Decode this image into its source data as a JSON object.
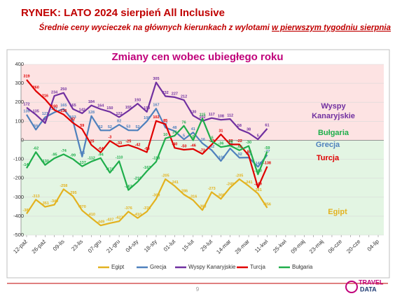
{
  "header": {
    "title": "RYNEK: LATO 2024 sierpień All Inclusive",
    "subtitle_start": "Średnie ceny wycieczek na głównych kierunkach z wylotami ",
    "subtitle_link": "w pierwszym tygodniu sierpnia"
  },
  "chart_data": {
    "type": "line",
    "title": "Zmiany cen wobec ubiegłego roku",
    "categories": [
      "12-paź",
      null,
      "26-paź",
      null,
      "09-lis",
      null,
      "23-lis",
      null,
      "07-gru",
      null,
      "21-gru",
      null,
      "04-sty",
      null,
      "18-sty",
      null,
      "01-lut",
      null,
      "15-lut",
      null,
      "29-lut",
      null,
      "14-mar",
      null,
      "28-mar",
      null,
      "11-kwi",
      null,
      "25-kwi",
      null,
      "09-maj",
      null,
      "23-maj",
      null,
      "06-cze",
      null,
      "20-cze",
      null,
      "04-lip"
    ],
    "series": [
      {
        "name": "Egipt",
        "color": "#e3b21f",
        "values": [
          -387,
          -313,
          -351,
          -340,
          -258,
          -295,
          -370,
          -410,
          -449,
          -437,
          -427,
          -376,
          -410,
          -376,
          -309,
          -205,
          -241,
          -286,
          -316,
          -368,
          -273,
          -309,
          -249,
          -205,
          -241,
          -281,
          -356,
          null,
          null,
          null,
          null,
          null,
          null,
          null,
          null,
          null,
          null,
          null,
          null
        ]
      },
      {
        "name": "Grecja",
        "color": "#4f81bd",
        "values": [
          135,
          56,
          121,
          147,
          165,
          103,
          -86,
          128,
          52,
          52,
          82,
          53,
          52,
          100,
          167,
          67,
          48,
          5,
          41,
          -16,
          -52,
          -109,
          -43,
          -92,
          -91,
          -140,
          -77,
          null,
          null,
          null,
          null,
          null,
          null,
          null,
          null,
          null,
          null,
          null,
          null
        ]
      },
      {
        "name": "Wyspy Kanaryjskie",
        "color": "#7030a0",
        "values": [
          172,
          135,
          90,
          234,
          250,
          165,
          142,
          184,
          164,
          150,
          122,
          155,
          193,
          150,
          305,
          232,
          227,
          212,
          130,
          102,
          117,
          108,
          112,
          58,
          38,
          5,
          61,
          null,
          null,
          null,
          null,
          null,
          null,
          null,
          null,
          null,
          null,
          null,
          null
        ]
      },
      {
        "name": "Turcja",
        "color": "#e00000",
        "values": [
          319,
          260,
          216,
          160,
          136,
          92,
          59,
          -25,
          -64,
          -3,
          -33,
          -25,
          -42,
          -63,
          102,
          85,
          -40,
          -50,
          -46,
          -72,
          -23,
          31,
          -22,
          -22,
          -80,
          -249,
          -138,
          null,
          null,
          null,
          null,
          null,
          null,
          null,
          null,
          null,
          null,
          null,
          null
        ]
      },
      {
        "name": "Bułgaria",
        "color": "#1fae4b",
        "values": [
          -147,
          -62,
          -130,
          -95,
          -74,
          -99,
          -137,
          -112,
          -94,
          -171,
          -110,
          -262,
          -219,
          -163,
          -113,
          10,
          24,
          76,
          0,
          115,
          -5,
          -36,
          -28,
          -53,
          -30,
          -180,
          -59,
          null,
          null,
          null,
          null,
          null,
          null,
          null,
          null,
          null,
          null,
          null,
          null
        ]
      }
    ],
    "annotations": [
      {
        "text": "Wyspy",
        "color": "#7030a0"
      },
      {
        "text": "Kanaryjskie",
        "color": "#7030a0"
      },
      {
        "text": "Bułgaria",
        "color": "#1fae4b"
      },
      {
        "text": "Grecja",
        "color": "#4f81bd"
      },
      {
        "text": "Turcja",
        "color": "#e00000"
      },
      {
        "text": "Egipt",
        "color": "#e3b21f"
      }
    ],
    "ylim": [
      -500,
      400
    ],
    "yticks": [
      -500,
      -400,
      -300,
      -200,
      -100,
      0,
      100,
      200,
      300,
      400
    ],
    "grid": true,
    "positive_background": "#fde3e3",
    "negative_background": "#e3f5e3",
    "legend": "bottom"
  },
  "footer": {
    "page": "9",
    "logo_top": "TRAVEL",
    "logo_bottom": "DATA"
  }
}
